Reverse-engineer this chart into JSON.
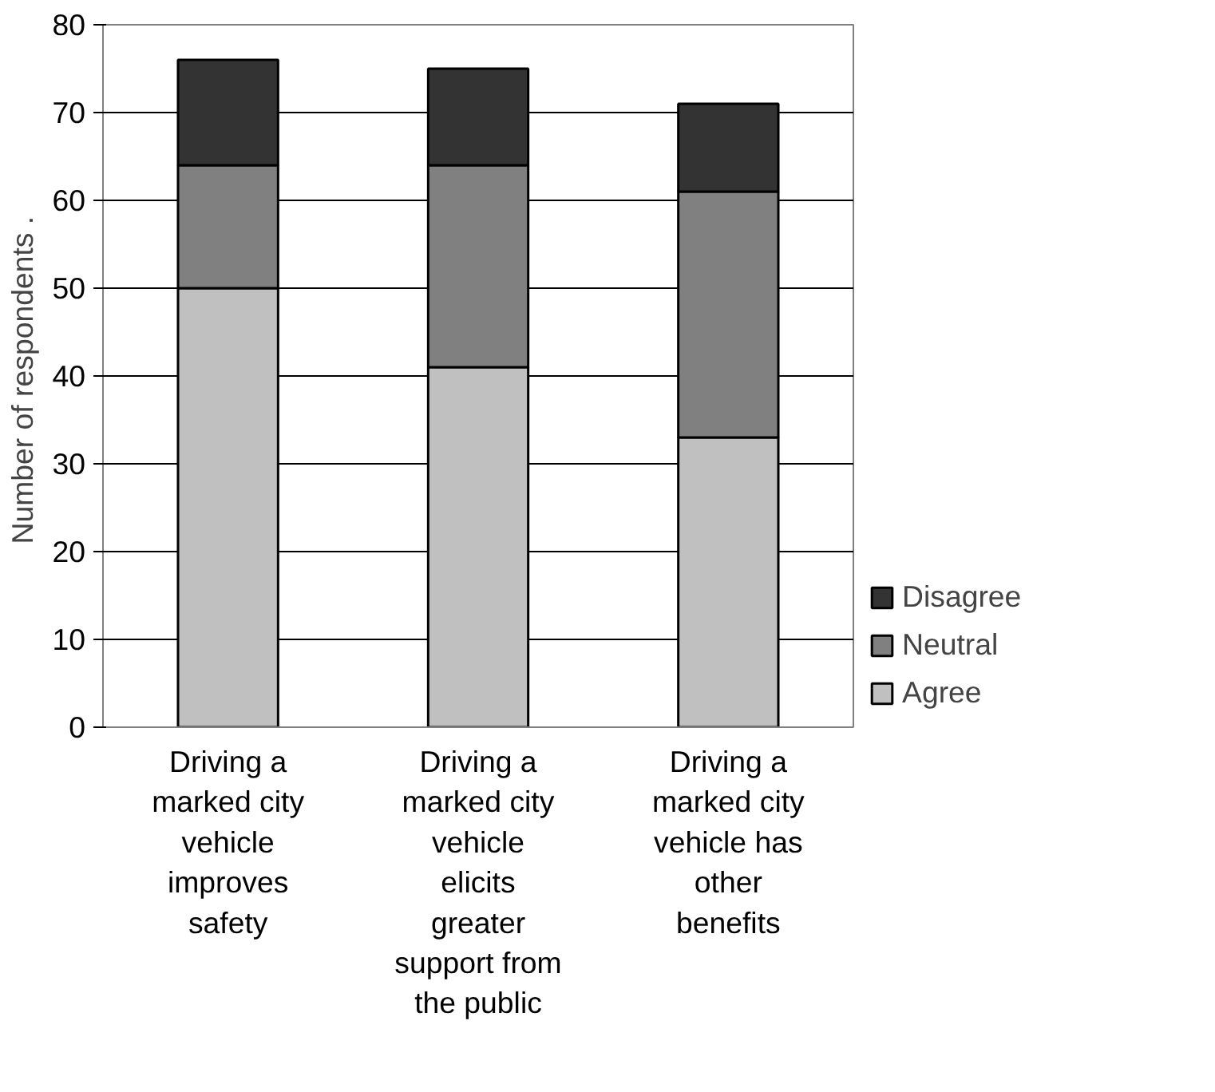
{
  "chart_data": {
    "type": "bar",
    "stacked": true,
    "ylabel": "Number of respondents  .",
    "categories": [
      "Driving a marked city vehicle improves safety",
      "Driving a marked city vehicle elicits greater support from the public",
      "Driving a marked city vehicle has other benefits"
    ],
    "series": [
      {
        "name": "Agree",
        "color": "#c0c0c0",
        "values": [
          50,
          41,
          33
        ]
      },
      {
        "name": "Neutral",
        "color": "#808080",
        "values": [
          14,
          23,
          28
        ]
      },
      {
        "name": "Disagree",
        "color": "#333333",
        "values": [
          12,
          11,
          10
        ]
      }
    ],
    "ylim": [
      0,
      80
    ],
    "yticks": [
      0,
      10,
      20,
      30,
      40,
      50,
      60,
      70,
      80
    ],
    "grid": "y",
    "legend": "right"
  }
}
